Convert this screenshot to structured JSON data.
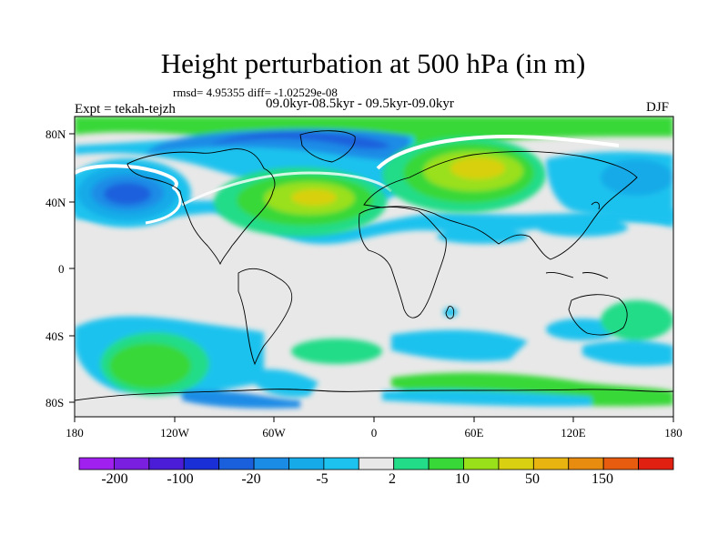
{
  "title": "Height perturbation at 500 hPa (in m)",
  "stats_line": "rmsd= 4.95355 diff= -1.02529e-08",
  "period_line": "09.0kyr-08.5kyr - 09.5kyr-09.0kyr",
  "experiment_label": "Expt = tekah-tejzh",
  "season_label": "DJF",
  "map": {
    "projection": "cylindrical equidistant",
    "lon_range": [
      -180,
      180
    ],
    "lat_range": [
      -90,
      90
    ],
    "x_ticks": [
      "180",
      "120W",
      "60W",
      "0",
      "60E",
      "120E",
      "180"
    ],
    "y_ticks": [
      "80N",
      "40N",
      "0",
      "40S",
      "80S"
    ],
    "background_color": "#e8e8e8"
  },
  "colorbar": {
    "colors": [
      "#a020f0",
      "#7a1fe0",
      "#4b1dd6",
      "#1a2fd6",
      "#1a60dd",
      "#1a8ce6",
      "#16aae8",
      "#1ec2ee",
      "#e8e8e8",
      "#22dc88",
      "#38d838",
      "#9ae01a",
      "#d8d010",
      "#e8b410",
      "#e88c10",
      "#e85c10",
      "#e02010"
    ],
    "labels": [
      "-200",
      "-100",
      "-20",
      "-5",
      "2",
      "10",
      "50",
      "150"
    ]
  }
}
